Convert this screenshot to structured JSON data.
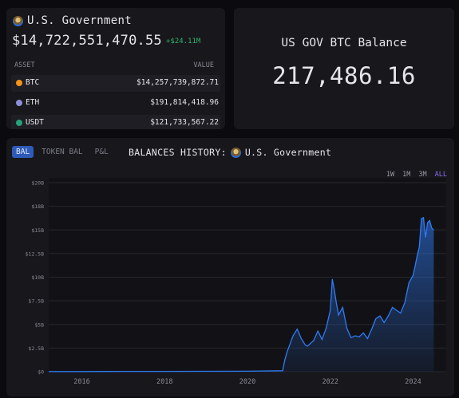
{
  "entity": {
    "name": "U.S. Government",
    "total_value": "$14,722,551,470.55",
    "change": "+$24.11M",
    "table": {
      "headers": [
        "ASSET",
        "VALUE"
      ],
      "rows": [
        {
          "asset": "BTC",
          "value": "$14,257,739,872.71",
          "color": "#f7931a"
        },
        {
          "asset": "ETH",
          "value": "$191,814,418.96",
          "color": "#8a8fd6"
        },
        {
          "asset": "USDT",
          "value": "$121,733,567.22",
          "color": "#26a17b"
        }
      ]
    }
  },
  "balance_card": {
    "title": "US GOV BTC Balance",
    "value": "217,486.16"
  },
  "history": {
    "tabs": [
      "BAL",
      "TOKEN BAL",
      "P&L"
    ],
    "active_tab": "BAL",
    "title": "BALANCES HISTORY:",
    "entity": "U.S. Government",
    "ranges": [
      "1W",
      "1M",
      "3M",
      "ALL"
    ],
    "active_range": "ALL"
  },
  "chart_data": {
    "type": "area",
    "xlabel": "",
    "ylabel": "",
    "x_ticks": [
      "2016",
      "2018",
      "2020",
      "2022",
      "2024"
    ],
    "y_ticks": [
      "$0",
      "$2.5B",
      "$5B",
      "$7.5B",
      "$10B",
      "$12.5B",
      "$15B",
      "$18B",
      "$20B"
    ],
    "y_tick_values": [
      0,
      2.5,
      5,
      7.5,
      10,
      12.5,
      15,
      17.5,
      20
    ],
    "ylim": [
      0,
      20
    ],
    "xlim": [
      2015.2,
      2024.8
    ],
    "color": "#2f7bf5",
    "x": [
      2015.2,
      2016.0,
      2017.0,
      2018.0,
      2019.0,
      2020.0,
      2020.85,
      2020.9,
      2020.95,
      2021.0,
      2021.1,
      2021.2,
      2021.3,
      2021.4,
      2021.45,
      2021.5,
      2021.6,
      2021.7,
      2021.8,
      2021.9,
      2022.0,
      2022.05,
      2022.1,
      2022.15,
      2022.2,
      2022.3,
      2022.4,
      2022.5,
      2022.6,
      2022.7,
      2022.8,
      2022.9,
      2023.0,
      2023.1,
      2023.2,
      2023.3,
      2023.4,
      2023.5,
      2023.6,
      2023.7,
      2023.8,
      2023.9,
      2024.0,
      2024.05,
      2024.1,
      2024.15,
      2024.2,
      2024.25,
      2024.3,
      2024.35,
      2024.4,
      2024.45,
      2024.5
    ],
    "y": [
      0.02,
      0.02,
      0.03,
      0.03,
      0.04,
      0.05,
      0.1,
      1.2,
      2.0,
      2.6,
      3.8,
      4.5,
      3.5,
      2.8,
      2.7,
      2.9,
      3.3,
      4.3,
      3.4,
      4.6,
      6.5,
      9.8,
      8.6,
      7.2,
      6.0,
      6.8,
      4.6,
      3.6,
      3.8,
      3.7,
      4.1,
      3.5,
      4.5,
      5.6,
      5.9,
      5.2,
      5.9,
      6.8,
      6.5,
      6.2,
      7.3,
      9.4,
      10.2,
      11.2,
      12.3,
      13.2,
      16.2,
      16.3,
      14.2,
      15.8,
      16.0,
      15.2,
      15.0
    ]
  }
}
